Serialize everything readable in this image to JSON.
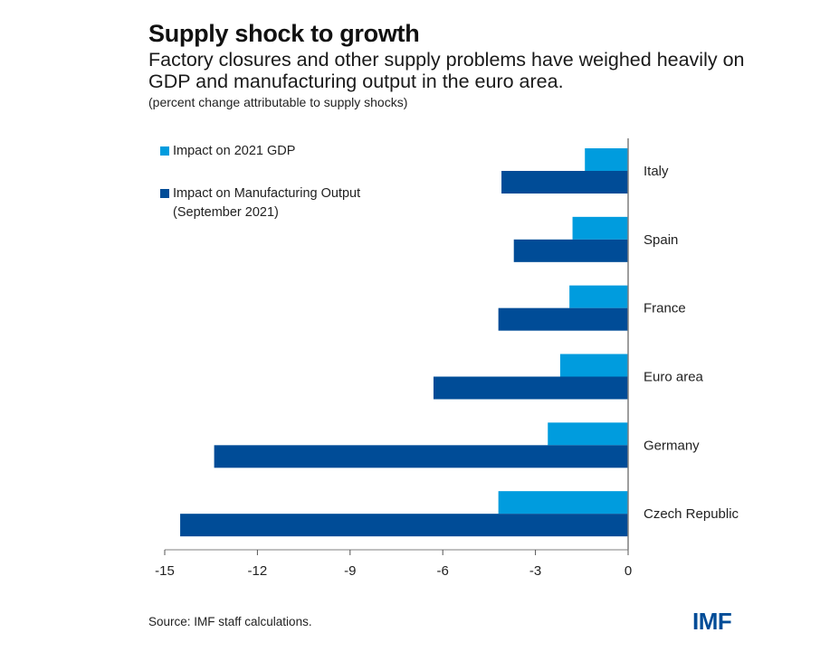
{
  "header": {
    "title": "Supply shock to growth",
    "subtitle": "Factory closures and other supply problems have weighed heavily on GDP and manufacturing output in the euro area.",
    "units": "(percent change attributable to supply shocks)"
  },
  "footer": {
    "source": "Source: IMF staff calculations.",
    "logo": "IMF"
  },
  "colors": {
    "gdp": "#009cde",
    "mfg": "#004c97",
    "axis": "#7f7f7f"
  },
  "chart_data": {
    "type": "bar",
    "orientation": "horizontal",
    "title": "Supply shock to growth",
    "xlabel": "",
    "ylabel": "",
    "xlim": [
      -15,
      0
    ],
    "xticks": [
      -15,
      -12,
      -9,
      -6,
      -3,
      0
    ],
    "grid": false,
    "legend_position": "top-left",
    "categories": [
      "Italy",
      "Spain",
      "France",
      "Euro area",
      "Germany",
      "Czech Republic"
    ],
    "series": [
      {
        "name": "Impact on 2021 GDP",
        "color": "#009cde",
        "values": [
          -1.4,
          -1.8,
          -1.9,
          -2.2,
          -2.6,
          -4.2
        ]
      },
      {
        "name": "Impact on Manufacturing Output (September 2021)",
        "color": "#004c97",
        "values": [
          -4.1,
          -3.7,
          -4.2,
          -6.3,
          -13.4,
          -14.5
        ]
      }
    ]
  },
  "legend": {
    "items": [
      {
        "line1": "Impact on 2021 GDP",
        "line2": ""
      },
      {
        "line1": "Impact on Manufacturing Output",
        "line2": "(September 2021)"
      }
    ]
  }
}
